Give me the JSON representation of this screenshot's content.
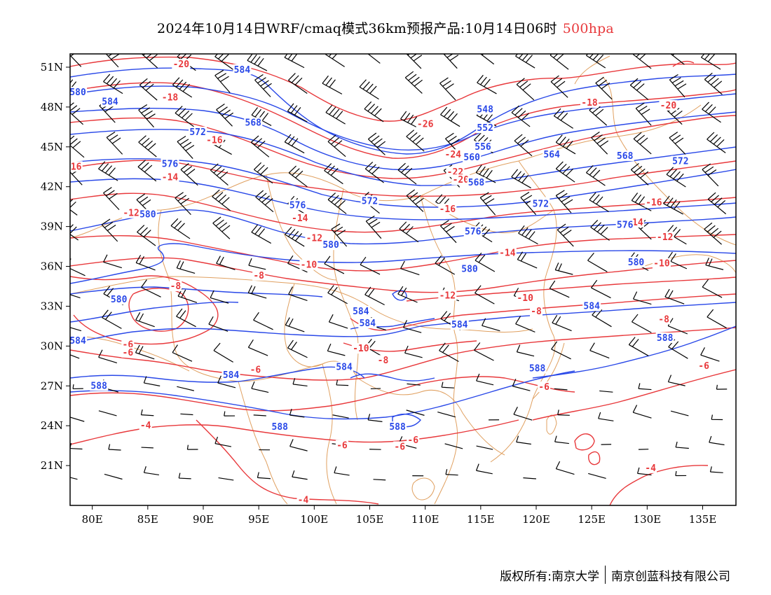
{
  "title": {
    "main": "2024年10月14日WRF/cmaq模式36km预报产品:10月14日06时",
    "level": "500hpa"
  },
  "footer": {
    "copyright": "版权所有:南京大学",
    "company": "南京创蓝科技有限公司"
  },
  "axes": {
    "x_ticks": [
      "80E",
      "85E",
      "90E",
      "95E",
      "100E",
      "105E",
      "110E",
      "115E",
      "120E",
      "125E",
      "130E",
      "135E"
    ],
    "y_ticks": [
      "51N",
      "48N",
      "45N",
      "42N",
      "39N",
      "36N",
      "33N",
      "30N",
      "27N",
      "24N",
      "21N"
    ],
    "lon_range": [
      78,
      138
    ],
    "lat_range": [
      18,
      52
    ]
  },
  "colors": {
    "temperature": "#e8383b",
    "height": "#2948e8",
    "boundary": "#e0a060",
    "barb": "#000000"
  },
  "temperature_labels": [
    {
      "text": "-20",
      "lon": 88,
      "lat": 51.2
    },
    {
      "text": "-18",
      "lon": 87,
      "lat": 48.7
    },
    {
      "text": "-16",
      "lon": 91,
      "lat": 45.5
    },
    {
      "text": "-16",
      "lon": 78.3,
      "lat": 43.5
    },
    {
      "text": "-14",
      "lon": 87,
      "lat": 42.7
    },
    {
      "text": "-12",
      "lon": 83.5,
      "lat": 40
    },
    {
      "text": "-14",
      "lon": 98.7,
      "lat": 39.6
    },
    {
      "text": "-12",
      "lon": 100,
      "lat": 38.1
    },
    {
      "text": "-10",
      "lon": 99.5,
      "lat": 36.1
    },
    {
      "text": "-8",
      "lon": 95,
      "lat": 35.3
    },
    {
      "text": "-8",
      "lon": 87.5,
      "lat": 34.5
    },
    {
      "text": "-26",
      "lon": 110,
      "lat": 46.7
    },
    {
      "text": "-24",
      "lon": 112.5,
      "lat": 44.4
    },
    {
      "text": "-22",
      "lon": 112.7,
      "lat": 43.1
    },
    {
      "text": "-20",
      "lon": 113.2,
      "lat": 42.5
    },
    {
      "text": "-16",
      "lon": 112,
      "lat": 40.3
    },
    {
      "text": "-14",
      "lon": 117.4,
      "lat": 37
    },
    {
      "text": "-12",
      "lon": 112,
      "lat": 33.8
    },
    {
      "text": "-10",
      "lon": 104.2,
      "lat": 29.8
    },
    {
      "text": "-8",
      "lon": 106.2,
      "lat": 28.9
    },
    {
      "text": "-16",
      "lon": 120.3,
      "lat": 40.8
    },
    {
      "text": "-18",
      "lon": 124.8,
      "lat": 48.3
    },
    {
      "text": "-20",
      "lon": 131.9,
      "lat": 48.1
    },
    {
      "text": "-16",
      "lon": 130.6,
      "lat": 40.8
    },
    {
      "text": "-14",
      "lon": 128.9,
      "lat": 39.3
    },
    {
      "text": "-12",
      "lon": 131.6,
      "lat": 38.2
    },
    {
      "text": "-10",
      "lon": 131.3,
      "lat": 36.2
    },
    {
      "text": "-10",
      "lon": 119,
      "lat": 33.6
    },
    {
      "text": "-8",
      "lon": 120,
      "lat": 32.6
    },
    {
      "text": "-8",
      "lon": 131.5,
      "lat": 32
    },
    {
      "text": "-6",
      "lon": 135.1,
      "lat": 28.5
    },
    {
      "text": "-6",
      "lon": 120.7,
      "lat": 26.9
    },
    {
      "text": "-6",
      "lon": 83.2,
      "lat": 30.1
    },
    {
      "text": "-6",
      "lon": 83.2,
      "lat": 29.5
    },
    {
      "text": "-6",
      "lon": 94.7,
      "lat": 28.2
    },
    {
      "text": "-4",
      "lon": 84.8,
      "lat": 24
    },
    {
      "text": "-6",
      "lon": 102.5,
      "lat": 22.5
    },
    {
      "text": "-6",
      "lon": 107.7,
      "lat": 22.4
    },
    {
      "text": "-6",
      "lon": 108.9,
      "lat": 22.9
    },
    {
      "text": "-4",
      "lon": 99,
      "lat": 18.4
    },
    {
      "text": "-4",
      "lon": 130.3,
      "lat": 20.8
    }
  ],
  "height_labels": [
    {
      "text": "580",
      "lon": 78.7,
      "lat": 49.1
    },
    {
      "text": "584",
      "lon": 81.6,
      "lat": 48.4
    },
    {
      "text": "584",
      "lon": 93.5,
      "lat": 50.8
    },
    {
      "text": "568",
      "lon": 94.5,
      "lat": 46.8
    },
    {
      "text": "572",
      "lon": 89.5,
      "lat": 46.1
    },
    {
      "text": "576",
      "lon": 87,
      "lat": 43.7
    },
    {
      "text": "580",
      "lon": 85,
      "lat": 39.9
    },
    {
      "text": "576",
      "lon": 98.5,
      "lat": 40.6
    },
    {
      "text": "580",
      "lon": 101.5,
      "lat": 37.6
    },
    {
      "text": "572",
      "lon": 105,
      "lat": 40.9
    },
    {
      "text": "548",
      "lon": 115.4,
      "lat": 47.8
    },
    {
      "text": "552",
      "lon": 115.4,
      "lat": 46.4
    },
    {
      "text": "556",
      "lon": 115.2,
      "lat": 45
    },
    {
      "text": "560",
      "lon": 114.2,
      "lat": 44.2
    },
    {
      "text": "564",
      "lon": 121.4,
      "lat": 44.4
    },
    {
      "text": "568",
      "lon": 128,
      "lat": 44.3
    },
    {
      "text": "572",
      "lon": 133,
      "lat": 43.9
    },
    {
      "text": "568",
      "lon": 114.6,
      "lat": 42.3
    },
    {
      "text": "572",
      "lon": 120.4,
      "lat": 40.7
    },
    {
      "text": "576",
      "lon": 114.3,
      "lat": 38.6
    },
    {
      "text": "576",
      "lon": 128,
      "lat": 39.1
    },
    {
      "text": "580",
      "lon": 114,
      "lat": 35.8
    },
    {
      "text": "580",
      "lon": 129,
      "lat": 36.3
    },
    {
      "text": "584",
      "lon": 125,
      "lat": 33
    },
    {
      "text": "588",
      "lon": 131.6,
      "lat": 30.6
    },
    {
      "text": "580",
      "lon": 82.4,
      "lat": 33.5
    },
    {
      "text": "584",
      "lon": 104.2,
      "lat": 32.6
    },
    {
      "text": "584",
      "lon": 104.8,
      "lat": 31.7
    },
    {
      "text": "584",
      "lon": 113.1,
      "lat": 31.6
    },
    {
      "text": "584",
      "lon": 78.7,
      "lat": 30.4
    },
    {
      "text": "584",
      "lon": 102.7,
      "lat": 28.4
    },
    {
      "text": "584",
      "lon": 92.5,
      "lat": 27.8
    },
    {
      "text": "588",
      "lon": 120.1,
      "lat": 28.3
    },
    {
      "text": "588",
      "lon": 80.6,
      "lat": 27
    },
    {
      "text": "588",
      "lon": 96.9,
      "lat": 23.9
    },
    {
      "text": "588",
      "lon": 107.5,
      "lat": 23.9
    }
  ]
}
